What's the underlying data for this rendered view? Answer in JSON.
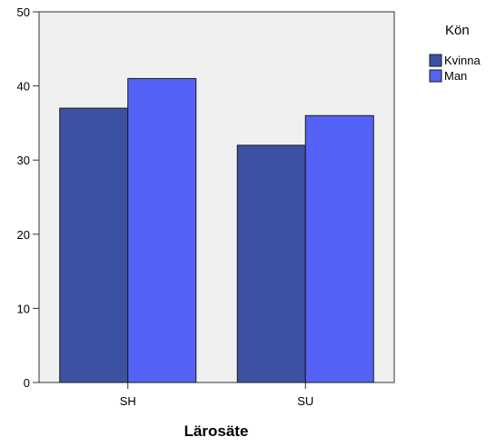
{
  "chart_data": {
    "type": "bar",
    "categories": [
      "SH",
      "SU"
    ],
    "series": [
      {
        "name": "Kvinna",
        "values": [
          37,
          32
        ],
        "color": "#3d51a3"
      },
      {
        "name": "Man",
        "values": [
          41,
          36
        ],
        "color": "#5462f5"
      }
    ],
    "xlabel": "Lärosäte",
    "ylabel": "",
    "ylim": [
      0,
      50
    ],
    "yticks": [
      0,
      10,
      20,
      30,
      40,
      50
    ],
    "legend_title": "Kön",
    "legend_position": "top-right",
    "plot_background": "#f0f0f0",
    "grid": false
  }
}
